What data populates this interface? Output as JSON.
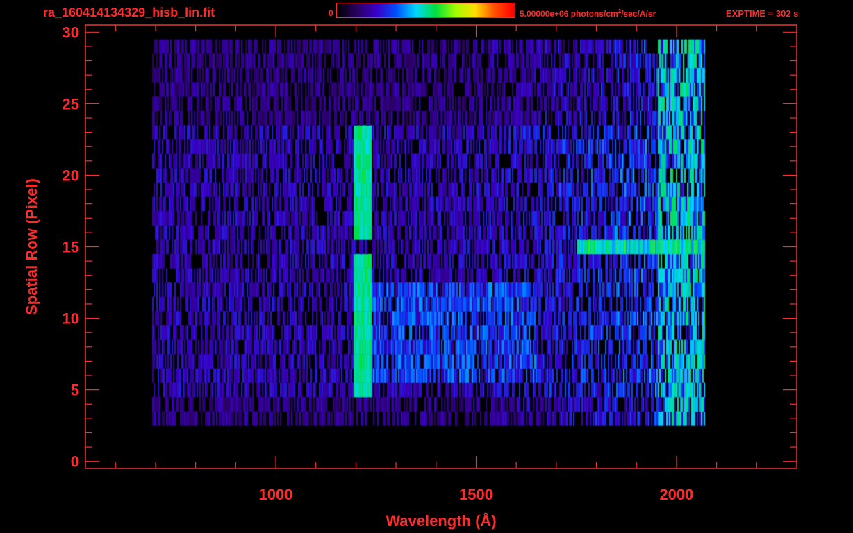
{
  "header": {
    "file_title": "ra_160414134329_hisb_lin.fit",
    "colorbar_min": "0",
    "colorbar_max_pre": "5.00000e+06 photons/cm",
    "colorbar_max_sup": "2",
    "colorbar_max_post": "/sec/A/sr",
    "exptime": "EXPTIME = 302 s"
  },
  "colors": {
    "axis": "#ff2a2a",
    "background": "#000000",
    "colormap": [
      "#000000",
      "#2a0060",
      "#3a00c8",
      "#0050ff",
      "#00d8ff",
      "#00e040",
      "#a0ff00",
      "#ffe000",
      "#ff5000",
      "#ff0000"
    ]
  },
  "chart_data": {
    "type": "heatmap",
    "title": "ra_160414134329_hisb_lin.fit",
    "xlabel": "Wavelength (Å)",
    "ylabel": "Spatial Row (Pixel)",
    "xlim": [
      525,
      2300
    ],
    "ylim": [
      -0.5,
      30.5
    ],
    "xticks": [
      1000,
      1500,
      2000
    ],
    "yticks": [
      0,
      5,
      10,
      15,
      20,
      25,
      30
    ],
    "colorbar_range": [
      0,
      5000000
    ],
    "colorbar_units": "photons/cm^2/sec/A/sr",
    "rows": 31,
    "signal_rows": [
      3,
      29
    ],
    "signal_wavelength_range": [
      690,
      2070
    ],
    "features": [
      {
        "wavelength": 1216,
        "rows": [
          5,
          23
        ],
        "level": 0.5
      },
      {
        "wavelength_range": [
          1750,
          2060
        ],
        "row": 15,
        "level": 0.55
      },
      {
        "wavelength_range": [
          1950,
          2060
        ],
        "rows": [
          4,
          29
        ],
        "level": 0.5
      }
    ]
  }
}
